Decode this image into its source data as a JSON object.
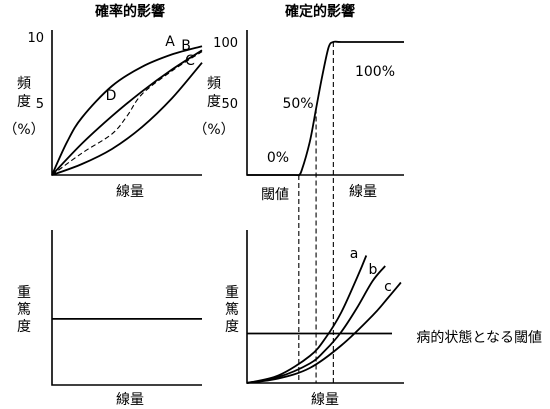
{
  "chart_data": [
    {
      "type": "line",
      "title": "確率的影響",
      "xlabel": "線量",
      "ylabel_lines": [
        "頻",
        "度",
        "（%）"
      ],
      "y_ticks": [
        5,
        10
      ],
      "ylim": [
        0,
        10
      ],
      "xlim": [
        0,
        10
      ],
      "series": [
        {
          "name": "A",
          "style": "solid",
          "x": [
            0,
            2,
            4,
            6,
            8,
            10
          ],
          "y": [
            0,
            2.3,
            4.3,
            6.1,
            7.7,
            9.1
          ]
        },
        {
          "name": "B",
          "style": "dashed",
          "x": [
            0,
            2,
            4,
            5,
            6,
            8,
            10
          ],
          "y": [
            0,
            1.6,
            3.0,
            4.3,
            5.9,
            7.6,
            9.0
          ]
        },
        {
          "name": "C",
          "style": "solid",
          "x": [
            0,
            2,
            4,
            6,
            8,
            10
          ],
          "y": [
            0,
            0.8,
            1.9,
            3.5,
            5.6,
            8.2
          ]
        },
        {
          "name": "D",
          "style": "solid",
          "x": [
            0,
            1,
            2,
            4,
            6,
            8,
            10
          ],
          "y": [
            0,
            2.4,
            4.2,
            6.5,
            7.9,
            8.8,
            9.4
          ]
        }
      ]
    },
    {
      "type": "line",
      "title": "確定的影響",
      "xlabel": "線量",
      "ylabel_lines": [
        "頻",
        "度",
        "（%）"
      ],
      "y_ticks": [
        50,
        100
      ],
      "ylim": [
        0,
        100
      ],
      "xlim": [
        0,
        10
      ],
      "annotations": [
        "0%",
        "50%",
        "100%"
      ],
      "threshold_label": "閾値",
      "series": [
        {
          "name": "",
          "style": "solid",
          "x": [
            0,
            3.0,
            3.3,
            3.5,
            4.0,
            4.4,
            4.8,
            5.2,
            5.5,
            6.0,
            8.0,
            10.0
          ],
          "y": [
            0,
            0,
            0,
            4,
            25,
            50,
            75,
            96,
            100,
            100,
            100,
            100
          ]
        }
      ],
      "guides": [
        3.3,
        4.4,
        5.5
      ]
    },
    {
      "type": "line",
      "xlabel": "線量",
      "ylabel_lines": [
        "重",
        "篤",
        "度"
      ],
      "ylim": [
        0,
        10
      ],
      "xlim": [
        0,
        10
      ],
      "series": [
        {
          "name": "",
          "style": "solid",
          "x": [
            0,
            10
          ],
          "y": [
            4.9,
            4.9
          ]
        }
      ]
    },
    {
      "type": "line",
      "xlabel": "線量",
      "ylabel_lines": [
        "重",
        "篤",
        "度"
      ],
      "ylim": [
        0,
        10
      ],
      "xlim": [
        0,
        10
      ],
      "threshold_line_label": "病的状態となる閾値",
      "threshold_level": 3.3,
      "series": [
        {
          "name": "a",
          "style": "solid",
          "x": [
            0,
            2,
            4,
            5,
            6,
            7,
            7.6
          ],
          "y": [
            0,
            0.5,
            1.8,
            3.0,
            4.7,
            7.0,
            8.5
          ]
        },
        {
          "name": "b",
          "style": "solid",
          "x": [
            0,
            2,
            4,
            5,
            6,
            7,
            8.0,
            8.8
          ],
          "y": [
            0,
            0.4,
            1.3,
            2.2,
            3.4,
            5.0,
            6.8,
            7.8
          ]
        },
        {
          "name": "c",
          "style": "solid",
          "x": [
            0,
            2,
            4,
            6,
            8,
            9.0,
            9.8
          ],
          "y": [
            0,
            0.3,
            1.0,
            2.5,
            4.5,
            5.7,
            6.7
          ]
        }
      ],
      "guides": [
        3.3,
        4.4,
        5.5
      ]
    }
  ]
}
